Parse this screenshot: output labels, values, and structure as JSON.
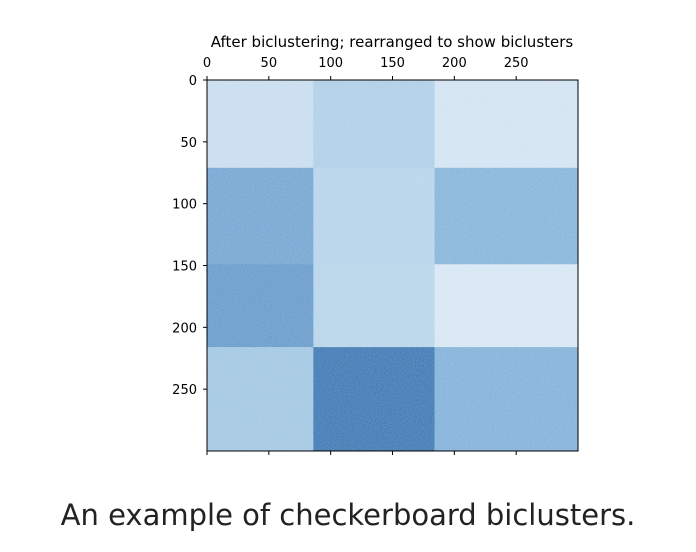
{
  "caption": "An example of checkerboard biclusters.",
  "chart_data": {
    "type": "heatmap",
    "title": "After biclustering; rearranged to show biclusters",
    "xlabel": "",
    "ylabel": "",
    "xlim": [
      0,
      300
    ],
    "ylim": [
      300,
      0
    ],
    "x_axis_position": "top",
    "grid": false,
    "colormap": "Blues",
    "x_ticks": [
      0,
      50,
      100,
      150,
      200,
      250
    ],
    "y_ticks": [
      0,
      50,
      100,
      150,
      200,
      250
    ],
    "col_boundaries": [
      0,
      86,
      184,
      300
    ],
    "row_boundaries": [
      0,
      71,
      149,
      216,
      300
    ],
    "block_colors": [
      [
        "#c4daee",
        "#a9cbe5",
        "#cfe1f1"
      ],
      [
        "#6c9fcf",
        "#b1d0e8",
        "#7eafd8"
      ],
      [
        "#5d94c8",
        "#b3d1e8",
        "#d4e5f3"
      ],
      [
        "#9cc3e1",
        "#336fae",
        "#7aacd6"
      ]
    ]
  }
}
